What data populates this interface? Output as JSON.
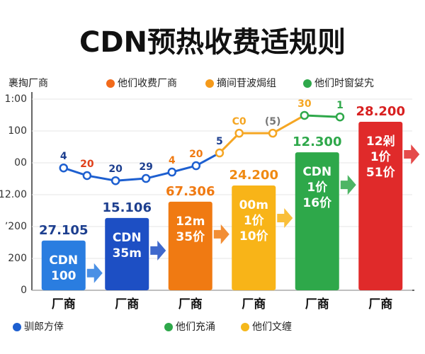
{
  "chart_data": {
    "type": "bar",
    "title": "CDN预热收费适规则",
    "legend_top": [
      {
        "name": "裹掏厂商",
        "color": null
      },
      {
        "name": "他们收费厂商",
        "color": "#f26a1b"
      },
      {
        "name": "摘间苷波焗组",
        "color": "#f59a1b"
      },
      {
        "name": "他们时窗姇宄",
        "color": "#2ea84a"
      }
    ],
    "legend_bottom": [
      {
        "name": "驯郎方倖",
        "color": "#1d5fd0"
      },
      {
        "name": "他们充涌",
        "color": "#2ea84a"
      },
      {
        "name": "他们文缠",
        "color": "#f5b81b"
      }
    ],
    "categories": [
      "厂商",
      "厂商",
      "厂商",
      "厂商",
      "厂商",
      "厂商"
    ],
    "values": [
      156,
      227,
      278,
      329,
      433,
      529
    ],
    "colors": [
      "#2a7de0",
      "#1d4fc4",
      "#f07a12",
      "#f8b418",
      "#2ea84a",
      "#e02a2a"
    ],
    "headlines": [
      "27.105",
      "15.106",
      "67.306",
      "24.200",
      "12.300",
      "28.200"
    ],
    "headline_colors": [
      "#1d3f8f",
      "#1d3f8f",
      "#f07a12",
      "#f08a12",
      "#2ea84a",
      "#d82020"
    ],
    "bar_texts": [
      [
        "CDN",
        "100"
      ],
      [
        "CDN",
        "35m"
      ],
      [
        "12m",
        "35价"
      ],
      [
        "00m",
        "1价",
        "10价"
      ],
      [
        "CDN",
        "1价",
        "16价"
      ],
      [
        "12剁",
        "1价",
        "51价"
      ]
    ],
    "xlim": [
      0,
      6
    ],
    "ylim": [
      0,
      600
    ],
    "yticks": [
      0,
      {
        "value": 100,
        "label": "200"
      },
      {
        "value": 200,
        "label": "ʼ200"
      },
      {
        "value": 300,
        "label": "12.00"
      },
      {
        "value": 400,
        "label": "00"
      },
      {
        "value": 500,
        "label": "100"
      },
      {
        "value": 600,
        "label": "1:00"
      }
    ],
    "line": {
      "x": [
        0.5,
        0.87,
        1.32,
        1.8,
        2.21,
        2.59,
        2.96,
        3.27,
        3.8,
        4.3,
        4.86
      ],
      "values": [
        384,
        360,
        344,
        351,
        371,
        391,
        431,
        493,
        493,
        549,
        544
      ],
      "point_labels": [
        "4",
        "20",
        "20",
        "29",
        "4",
        "20",
        "5",
        "C0",
        "(5)",
        "30",
        "1"
      ],
      "segment_colors": [
        "#1d5fd0",
        "#1d5fd0",
        "#1d5fd0",
        "#1d5fd0",
        "#1d5fd0",
        "#1d5fd0",
        "#f5a623",
        "#f5a623",
        "#f5a623",
        "#2ea84a"
      ],
      "label_colors": [
        "#1d3f8f",
        "#e0401a",
        "#1d3f8f",
        "#1d3f8f",
        "#f07a12",
        "#f07a12",
        "#1d3f8f",
        "#f5a623",
        "#777777",
        "#f5a623",
        "#2ea84a"
      ]
    }
  }
}
